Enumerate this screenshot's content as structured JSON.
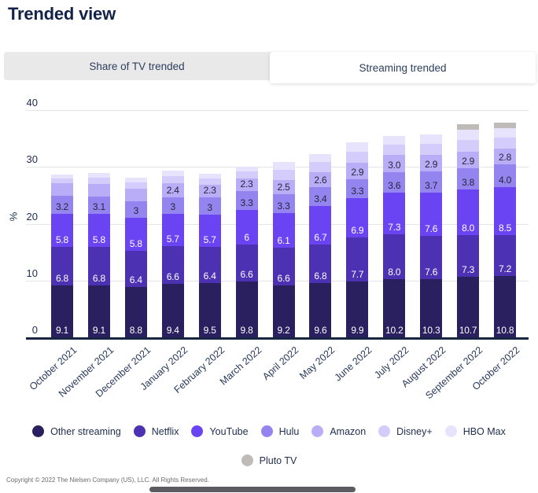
{
  "page": {
    "title": "Trended view",
    "copyright": "Copyright © 2022 The Nielsen Company (US), LLC. All Rights Reserved."
  },
  "tabs": [
    {
      "label": "Share of TV trended",
      "active": false
    },
    {
      "label": "Streaming trended",
      "active": true
    }
  ],
  "chart_data": {
    "type": "bar",
    "subtype": "stacked-vertical",
    "ylabel": "%",
    "yticks": [
      0,
      10,
      20,
      30,
      40
    ],
    "ylim": [
      0,
      40
    ],
    "grid": true,
    "legend_position": "bottom",
    "categories": [
      "October 2021",
      "November 2021",
      "December 2021",
      "January 2022",
      "February 2022",
      "March 2022",
      "April 2022",
      "May 2022",
      "June 2022",
      "July 2022",
      "August 2022",
      "September 2022",
      "October 2022"
    ],
    "series": [
      {
        "name": "Other streaming",
        "color": "#2a2060",
        "label_color": "#ffffff",
        "values": [
          9.1,
          9.1,
          8.8,
          9.4,
          9.5,
          9.8,
          9.2,
          9.6,
          9.9,
          10.2,
          10.3,
          10.7,
          10.8
        ],
        "labels": [
          "9.1",
          "9.1",
          "8.8",
          "9.4",
          "9.5",
          "9.8",
          "9.2",
          "9.6",
          "9.9",
          "10.2",
          "10.3",
          "10.7",
          "10.8"
        ]
      },
      {
        "name": "Netflix",
        "color": "#4c31b2",
        "label_color": "#ffffff",
        "values": [
          6.8,
          6.8,
          6.4,
          6.6,
          6.4,
          6.6,
          6.6,
          6.8,
          7.7,
          8.0,
          7.6,
          7.3,
          7.2
        ],
        "labels": [
          "6.8",
          "6.8",
          "6.4",
          "6.6",
          "6.4",
          "6.6",
          "6.6",
          "6.8",
          "7.7",
          "8.0",
          "7.6",
          "7.3",
          "7.2"
        ]
      },
      {
        "name": "YouTube",
        "color": "#6a44f2",
        "label_color": "#ffffff",
        "values": [
          5.8,
          5.8,
          5.8,
          5.7,
          5.7,
          6.0,
          6.1,
          6.7,
          6.9,
          7.3,
          7.6,
          8.0,
          8.5
        ],
        "labels": [
          "5.8",
          "5.8",
          "5.8",
          "5.7",
          "5.7",
          "6",
          "6.1",
          "6.7",
          "6.9",
          "7.3",
          "7.6",
          "8.0",
          "8.5"
        ]
      },
      {
        "name": "Hulu",
        "color": "#9484f0",
        "label_color": "#25253a",
        "values": [
          3.2,
          3.1,
          3.0,
          3.0,
          3.0,
          3.3,
          3.3,
          3.4,
          3.3,
          3.6,
          3.7,
          3.8,
          4.0
        ],
        "labels": [
          "3.2",
          "3.1",
          "3",
          "3",
          "3",
          "3.3",
          "3.3",
          "3.4",
          "3.3",
          "3.6",
          "3.7",
          "3.8",
          "4.0"
        ]
      },
      {
        "name": "Amazon",
        "color": "#b9adf7",
        "label_color": "#25253a",
        "values": [
          2.2,
          2.2,
          2.2,
          2.4,
          2.3,
          2.3,
          2.5,
          2.6,
          2.9,
          3.0,
          2.9,
          2.9,
          2.8
        ],
        "labels": [
          null,
          null,
          null,
          "2.4",
          "2.3",
          "2.3",
          "2.5",
          "2.6",
          "2.9",
          "3.0",
          "2.9",
          "2.9",
          "2.8"
        ]
      },
      {
        "name": "Disney+",
        "color": "#d4ccfa",
        "label_color": "#25253a",
        "values": [
          0.9,
          1.1,
          1.1,
          1.3,
          1.1,
          1.2,
          1.8,
          1.8,
          2.0,
          1.9,
          2.0,
          2.1,
          1.9
        ],
        "labels": [
          null,
          null,
          null,
          null,
          null,
          null,
          null,
          null,
          null,
          null,
          null,
          null,
          null
        ]
      },
      {
        "name": "HBO Max",
        "color": "#e8e3fd",
        "label_color": "#25253a",
        "values": [
          0.7,
          0.8,
          0.8,
          1.0,
          0.8,
          0.9,
          1.4,
          1.4,
          1.6,
          1.5,
          1.7,
          1.8,
          1.6
        ],
        "labels": [
          null,
          null,
          null,
          null,
          null,
          null,
          null,
          null,
          null,
          null,
          null,
          null,
          null
        ]
      },
      {
        "name": "Pluto TV",
        "color": "#bfbbb8",
        "label_color": "#25253a",
        "values": [
          0,
          0,
          0,
          0,
          0,
          0,
          0,
          0,
          0,
          0,
          0,
          0.9,
          1.0
        ],
        "labels": [
          null,
          null,
          null,
          null,
          null,
          null,
          null,
          null,
          null,
          null,
          null,
          null,
          null
        ]
      }
    ]
  }
}
